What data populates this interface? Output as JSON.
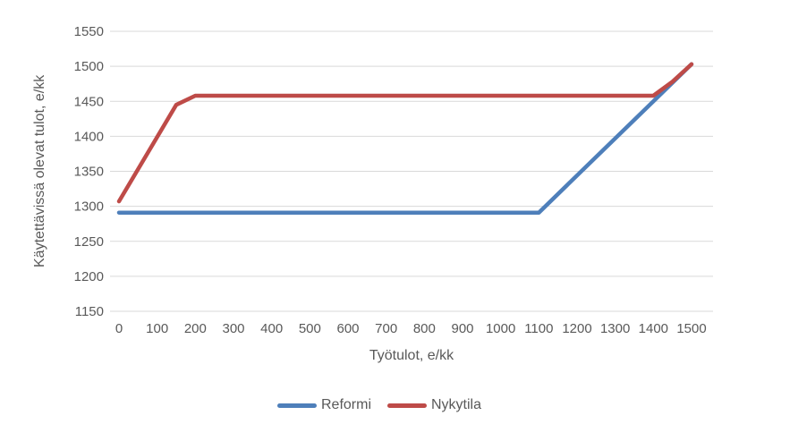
{
  "chart_data": {
    "type": "line",
    "xlabel": "Työtulot, e/kk",
    "ylabel": "Käytettävissä olevat tulot, e/kk",
    "xlim": [
      0,
      1500
    ],
    "xtick_step": 100,
    "ylim": [
      1150,
      1550
    ],
    "ytick_step": 50,
    "grid": "horizontal-only",
    "legend_position": "bottom",
    "series": [
      {
        "name": "Reformi",
        "color": "#4E7FBA",
        "points": [
          [
            0,
            1291
          ],
          [
            1100,
            1291
          ],
          [
            1500,
            1503
          ]
        ]
      },
      {
        "name": "Nykytila",
        "color": "#BE4B48",
        "points": [
          [
            0,
            1307
          ],
          [
            150,
            1445
          ],
          [
            200,
            1458
          ],
          [
            1400,
            1458
          ],
          [
            1450,
            1478
          ],
          [
            1500,
            1503
          ]
        ]
      }
    ]
  },
  "style": {
    "text_color": "#595959",
    "gridline_color": "#D9D9D9",
    "background": "#FFFFFF",
    "reformi_color": "#4E7FBA",
    "nykytila_color": "#BE4B48"
  }
}
